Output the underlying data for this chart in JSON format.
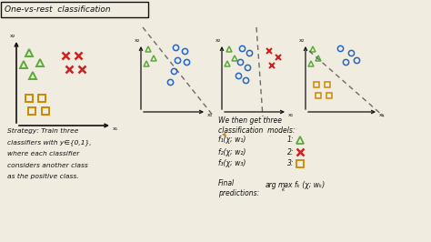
{
  "title": "One-vs-rest  classification",
  "bg_color": "#f0ece0",
  "green": "#5aaa3a",
  "red": "#cc2222",
  "orange": "#cc8800",
  "blue": "#2266cc",
  "text_color": "#111111",
  "strategy_text1": "Strategy: Train three",
  "strategy_text2": "classifiers with y∈{0,1},",
  "strategy_text3": "where each classifier",
  "strategy_text4": "considers another class",
  "strategy_text5": "as the positive class."
}
